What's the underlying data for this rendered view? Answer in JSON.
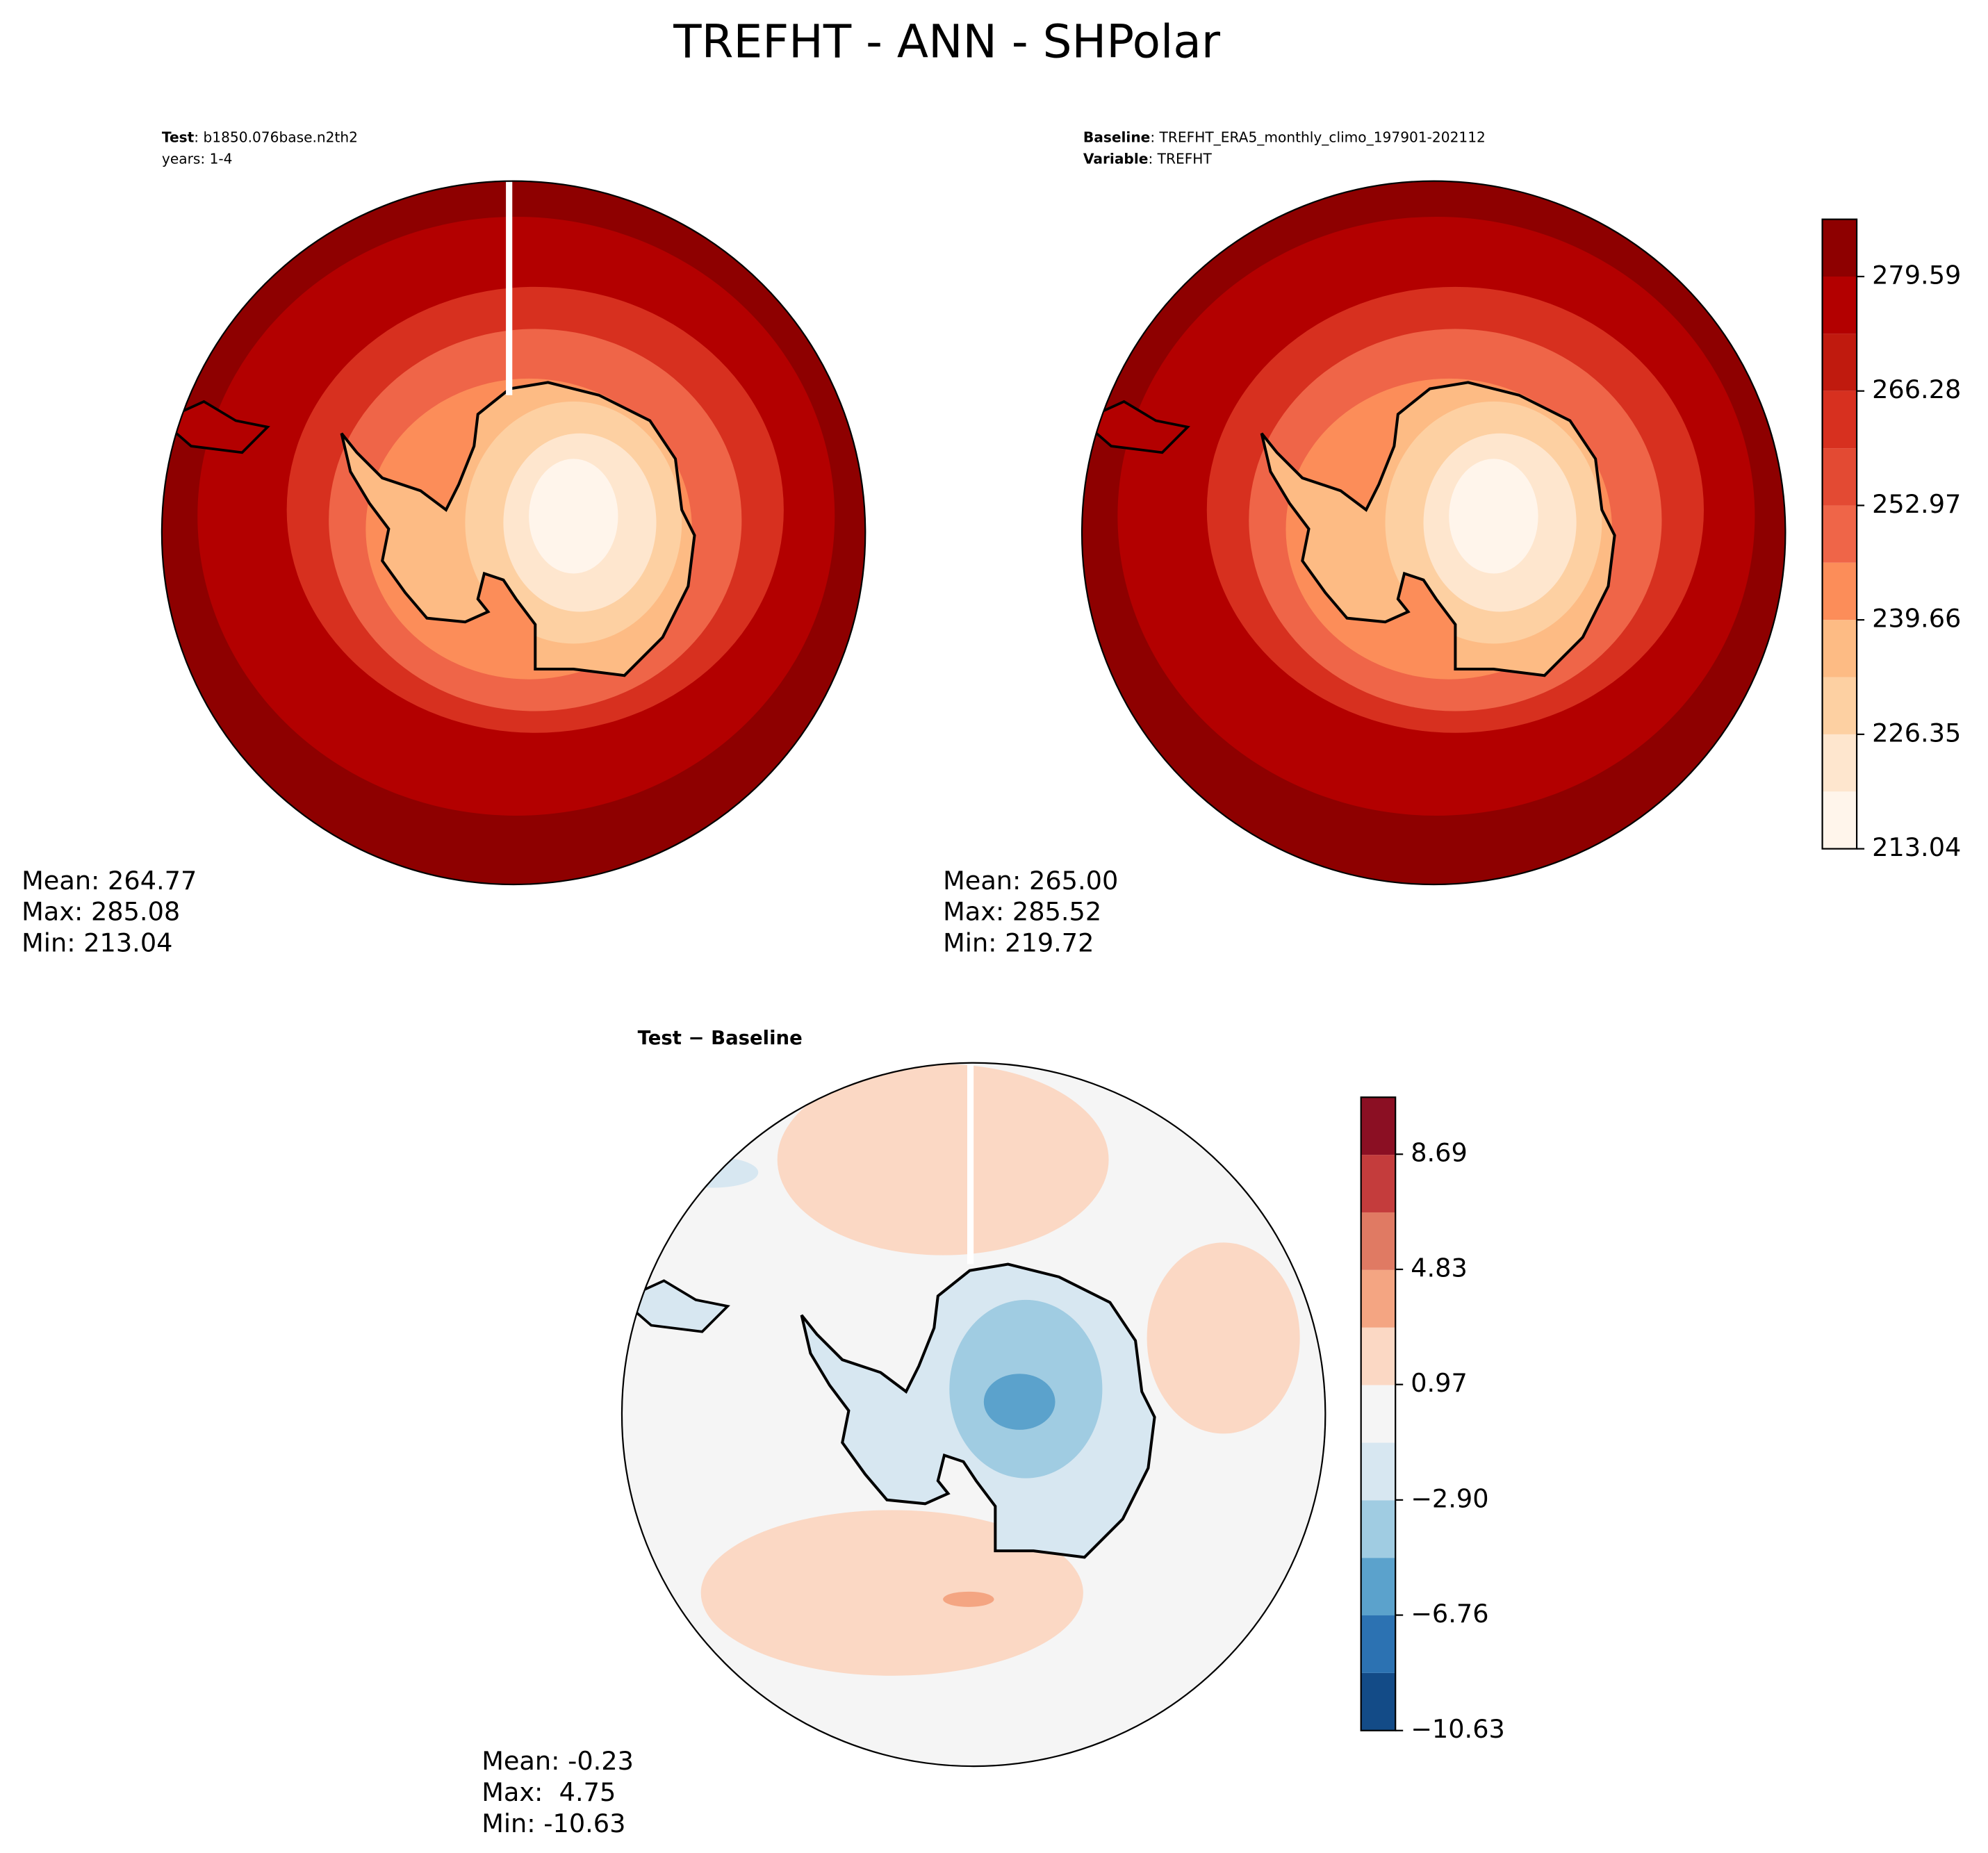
{
  "title": "TREFHT - ANN - SHPolar",
  "panels": [
    {
      "header": [
        [
          {
            "text": "Test",
            "bold": true
          },
          {
            "text": ": b1850.076base.n2th2"
          }
        ],
        [
          {
            "text": "years: 1-4"
          }
        ]
      ],
      "stats": [
        "Mean: 264.77",
        "Max: 285.08",
        "Min: 213.04"
      ]
    },
    {
      "header": [
        [
          {
            "text": "Baseline",
            "bold": true
          },
          {
            "text": ": TREFHT_ERA5_monthly_climo_197901-202112"
          }
        ],
        [
          {
            "text": "Variable",
            "bold": true
          },
          {
            "text": ": TREFHT"
          }
        ]
      ],
      "stats": [
        "Mean: 265.00",
        "Max: 285.52",
        "Min: 219.72"
      ]
    },
    {
      "header": [
        [
          {
            "text": "Test − Baseline",
            "bold": true
          }
        ]
      ],
      "stats": [
        "Mean: -0.23",
        "Max:  4.75",
        "Min: -10.63"
      ]
    }
  ],
  "colorbars": [
    {
      "range": [
        213.04,
        286.245
      ],
      "ticks": [
        213.04,
        226.35,
        239.66,
        252.97,
        266.28,
        279.59
      ],
      "colors": [
        "#fff5eb",
        "#fee6ce",
        "#fdd0a2",
        "#fdbb84",
        "#fc8d59",
        "#ef6548",
        "#e34a33",
        "#d7301f",
        "#c01a0e",
        "#b30000",
        "#8e0000"
      ]
    },
    {
      "range": [
        -10.63,
        10.6
      ],
      "ticks": [
        {
          "value": -10.63,
          "label": "−10.63"
        },
        {
          "value": -6.76,
          "label": "−6.76"
        },
        {
          "value": -2.9,
          "label": "−2.90"
        },
        0.97,
        4.83,
        8.69
      ],
      "colors": [
        "#134b87",
        "#2c72b2",
        "#5ba2cc",
        "#a0cce2",
        "#d7e7f1",
        "#f5f5f5",
        "#fbd8c4",
        "#f4a582",
        "#e07a63",
        "#c43c3c",
        "#8b0f23"
      ]
    }
  ]
}
